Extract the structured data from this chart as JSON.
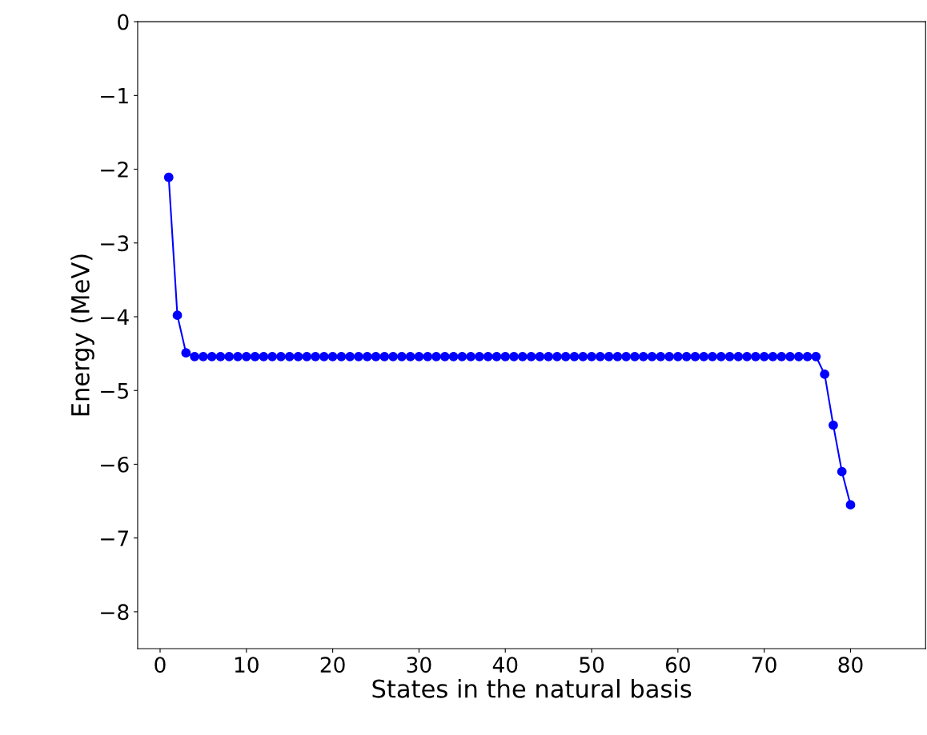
{
  "chart_data": {
    "type": "line",
    "xlabel": "States in the natural basis",
    "ylabel": "Energy (MeV)",
    "x": [
      1,
      2,
      3,
      4,
      5,
      6,
      7,
      8,
      9,
      10,
      11,
      12,
      13,
      14,
      15,
      16,
      17,
      18,
      19,
      20,
      21,
      22,
      23,
      24,
      25,
      26,
      27,
      28,
      29,
      30,
      31,
      32,
      33,
      34,
      35,
      36,
      37,
      38,
      39,
      40,
      41,
      42,
      43,
      44,
      45,
      46,
      47,
      48,
      49,
      50,
      51,
      52,
      53,
      54,
      55,
      56,
      57,
      58,
      59,
      60,
      61,
      62,
      63,
      64,
      65,
      66,
      67,
      68,
      69,
      70,
      71,
      72,
      73,
      74,
      75,
      76,
      77,
      78,
      79,
      80
    ],
    "series": [
      {
        "color": "#0000ff",
        "values": [
          -2.11,
          -3.98,
          -4.49,
          -4.54,
          -4.54,
          -4.54,
          -4.54,
          -4.54,
          -4.54,
          -4.54,
          -4.54,
          -4.54,
          -4.54,
          -4.54,
          -4.54,
          -4.54,
          -4.54,
          -4.54,
          -4.54,
          -4.54,
          -4.54,
          -4.54,
          -4.54,
          -4.54,
          -4.54,
          -4.54,
          -4.54,
          -4.54,
          -4.54,
          -4.54,
          -4.54,
          -4.54,
          -4.54,
          -4.54,
          -4.54,
          -4.54,
          -4.54,
          -4.54,
          -4.54,
          -4.54,
          -4.54,
          -4.54,
          -4.54,
          -4.54,
          -4.54,
          -4.54,
          -4.54,
          -4.54,
          -4.54,
          -4.54,
          -4.54,
          -4.54,
          -4.54,
          -4.54,
          -4.54,
          -4.54,
          -4.54,
          -4.54,
          -4.54,
          -4.54,
          -4.54,
          -4.54,
          -4.54,
          -4.54,
          -4.54,
          -4.54,
          -4.54,
          -4.54,
          -4.54,
          -4.54,
          -4.54,
          -4.54,
          -4.54,
          -4.54,
          -4.54,
          -4.54,
          -4.78,
          -5.47,
          -6.1,
          -6.55
        ]
      }
    ],
    "xlim": [
      -2.6,
      88.7
    ],
    "xticks": [
      0,
      10,
      20,
      30,
      40,
      50,
      60,
      70,
      80
    ],
    "ylim": [
      -8.5,
      0
    ],
    "yticks": [
      -8,
      -7,
      -6,
      -5,
      -4,
      -3,
      -2,
      -1,
      0
    ],
    "marker": "circle",
    "line_style": "solid",
    "grid": false,
    "legend": false
  }
}
